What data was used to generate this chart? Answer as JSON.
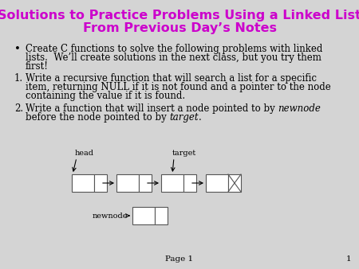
{
  "title_line1": "Solutions to Practice Problems Using a Linked List",
  "title_line2": "From Previous Day’s Notes",
  "title_color": "#cc00cc",
  "bg_color": "#d4d4d4",
  "text_color": "#000000",
  "bullet_line1": "Create C functions to solve the following problems with linked",
  "bullet_line2": "lists.  We’ll create solutions in the next class, but you try them",
  "bullet_line3": "first!",
  "item1_line1": "Write a recursive function that will search a list for a specific",
  "item1_line2": "item, returning NULL if it is not found and a pointer to the node",
  "item1_line3": "containing the value if it is found.",
  "item2_line1_pre": "Write a function that will insert a node pointed to by ",
  "item2_line1_italic": "newnode",
  "item2_line2_pre": "before the node pointed to by ",
  "item2_line2_italic": "target",
  "item2_line2_suf": ".",
  "page_label": "Page 1",
  "page_number": "1",
  "font_size_title": 11.5,
  "font_size_body": 8.5,
  "font_size_page": 7.5,
  "font_size_diagram": 7
}
